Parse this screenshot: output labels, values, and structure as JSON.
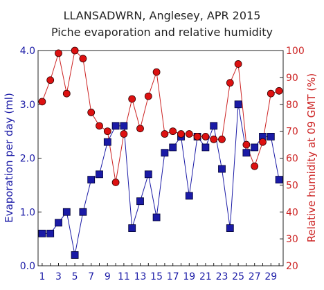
{
  "chart_data": {
    "type": "line",
    "title": "LLANSADWRN, Anglesey, APR 2015",
    "subtitle": "Piche evaporation and relative humidity",
    "x": [
      1,
      2,
      3,
      4,
      5,
      6,
      7,
      8,
      9,
      10,
      11,
      12,
      13,
      14,
      15,
      16,
      17,
      18,
      19,
      20,
      21,
      22,
      23,
      24,
      25,
      26,
      27,
      28,
      29,
      30
    ],
    "x_tick_labels": [
      "1",
      "3",
      "5",
      "7",
      "9",
      "11",
      "13",
      "15",
      "17",
      "19",
      "21",
      "23",
      "25",
      "27",
      "29"
    ],
    "x_ticks": [
      1,
      3,
      5,
      7,
      9,
      11,
      13,
      15,
      17,
      19,
      21,
      23,
      25,
      27,
      29
    ],
    "xlim": [
      0.5,
      30.5
    ],
    "y_left": {
      "label": "Evaporation per day (ml)",
      "lim": [
        0,
        4.0
      ],
      "ticks": [
        0,
        1,
        2,
        3,
        4
      ],
      "tick_labels": [
        "0.0",
        "1.0",
        "2.0",
        "3.0",
        "4.0"
      ],
      "color": "#1a1aa6"
    },
    "y_right": {
      "label": "Relative humidity at 09 GMT (%)",
      "lim": [
        20,
        100
      ],
      "ticks": [
        20,
        30,
        40,
        50,
        60,
        70,
        80,
        90,
        100
      ],
      "tick_labels": [
        "20",
        "30",
        "40",
        "50",
        "60",
        "70",
        "80",
        "90",
        "100"
      ],
      "color": "#cc2222"
    },
    "series": [
      {
        "axis": "left",
        "marker": "square",
        "color": "#1a1aa6",
        "marker_fill": "#1a1aa6",
        "values": [
          0.6,
          0.6,
          0.8,
          1.0,
          0.2,
          1.0,
          1.6,
          1.7,
          2.3,
          2.6,
          2.6,
          0.7,
          1.2,
          1.7,
          0.9,
          2.1,
          2.2,
          2.4,
          1.3,
          2.4,
          2.2,
          2.6,
          1.8,
          0.7,
          3.0,
          2.1,
          2.2,
          2.4,
          2.4,
          1.6
        ]
      },
      {
        "axis": "right",
        "marker": "circle",
        "color": "#cc2222",
        "marker_fill": "#dd1111",
        "values": [
          81,
          89,
          99,
          84,
          100,
          97,
          77,
          72,
          70,
          51,
          69,
          82,
          71,
          83,
          92,
          69,
          70,
          69,
          69,
          68,
          68,
          67,
          67,
          88,
          95,
          65,
          57,
          66,
          84,
          85
        ]
      }
    ],
    "grid": false
  }
}
